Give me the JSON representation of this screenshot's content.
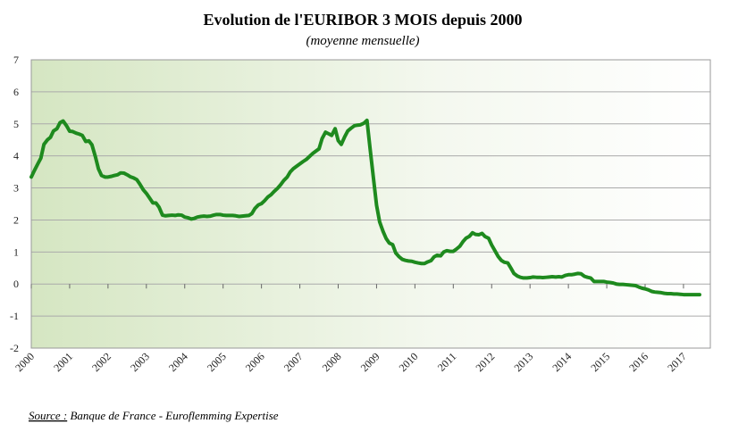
{
  "chart_data": {
    "type": "line",
    "title": "Evolution de l'EURIBOR 3 MOIS depuis 2000",
    "subtitle": "(moyenne mensuelle)",
    "source_label": "Source :",
    "source_text": "Banque de France - Euroflemming Expertise",
    "color": "#1e8a1e",
    "x": [
      2000,
      2000.08,
      2000.17,
      2000.25,
      2000.33,
      2000.42,
      2000.5,
      2000.58,
      2000.67,
      2000.75,
      2000.83,
      2000.92,
      2001,
      2001.08,
      2001.17,
      2001.25,
      2001.33,
      2001.42,
      2001.5,
      2001.58,
      2001.67,
      2001.75,
      2001.83,
      2001.92,
      2002,
      2002.08,
      2002.17,
      2002.25,
      2002.33,
      2002.42,
      2002.5,
      2002.58,
      2002.67,
      2002.75,
      2002.83,
      2002.92,
      2003,
      2003.08,
      2003.17,
      2003.25,
      2003.33,
      2003.42,
      2003.5,
      2003.58,
      2003.67,
      2003.75,
      2003.83,
      2003.92,
      2004,
      2004.08,
      2004.17,
      2004.25,
      2004.33,
      2004.42,
      2004.5,
      2004.58,
      2004.67,
      2004.75,
      2004.83,
      2004.92,
      2005,
      2005.08,
      2005.17,
      2005.25,
      2005.33,
      2005.42,
      2005.5,
      2005.58,
      2005.67,
      2005.75,
      2005.83,
      2005.92,
      2006,
      2006.08,
      2006.17,
      2006.25,
      2006.33,
      2006.42,
      2006.5,
      2006.58,
      2006.67,
      2006.75,
      2006.83,
      2006.92,
      2007,
      2007.08,
      2007.17,
      2007.25,
      2007.33,
      2007.42,
      2007.5,
      2007.58,
      2007.67,
      2007.75,
      2007.83,
      2007.92,
      2008,
      2008.08,
      2008.17,
      2008.25,
      2008.33,
      2008.42,
      2008.5,
      2008.58,
      2008.67,
      2008.75,
      2008.83,
      2008.92,
      2009,
      2009.08,
      2009.17,
      2009.25,
      2009.33,
      2009.42,
      2009.5,
      2009.58,
      2009.67,
      2009.75,
      2009.83,
      2009.92,
      2010,
      2010.08,
      2010.17,
      2010.25,
      2010.33,
      2010.42,
      2010.5,
      2010.58,
      2010.67,
      2010.75,
      2010.83,
      2010.92,
      2011,
      2011.08,
      2011.17,
      2011.25,
      2011.33,
      2011.42,
      2011.5,
      2011.58,
      2011.67,
      2011.75,
      2011.83,
      2011.92,
      2012,
      2012.08,
      2012.17,
      2012.25,
      2012.33,
      2012.42,
      2012.5,
      2012.58,
      2012.67,
      2012.75,
      2012.83,
      2012.92,
      2013,
      2013.08,
      2013.17,
      2013.25,
      2013.33,
      2013.42,
      2013.5,
      2013.58,
      2013.67,
      2013.75,
      2013.83,
      2013.92,
      2014,
      2014.08,
      2014.17,
      2014.25,
      2014.33,
      2014.42,
      2014.5,
      2014.58,
      2014.67,
      2014.75,
      2014.83,
      2014.92,
      2015,
      2015.08,
      2015.17,
      2015.25,
      2015.33,
      2015.42,
      2015.5,
      2015.58,
      2015.67,
      2015.75,
      2015.83,
      2015.92,
      2016,
      2016.08,
      2016.17,
      2016.25,
      2016.33,
      2016.42,
      2016.5,
      2016.58,
      2016.67,
      2016.75,
      2016.83,
      2016.92,
      2017,
      2017.08,
      2017.17,
      2017.25,
      2017.33,
      2017.42
    ],
    "values": [
      3.34,
      3.54,
      3.75,
      3.93,
      4.36,
      4.5,
      4.58,
      4.78,
      4.85,
      5.04,
      5.09,
      4.94,
      4.77,
      4.76,
      4.71,
      4.68,
      4.64,
      4.45,
      4.47,
      4.35,
      3.98,
      3.6,
      3.39,
      3.34,
      3.34,
      3.36,
      3.39,
      3.41,
      3.47,
      3.46,
      3.41,
      3.35,
      3.31,
      3.26,
      3.12,
      2.94,
      2.83,
      2.69,
      2.53,
      2.53,
      2.4,
      2.15,
      2.13,
      2.14,
      2.15,
      2.14,
      2.16,
      2.15,
      2.09,
      2.07,
      2.03,
      2.05,
      2.09,
      2.11,
      2.12,
      2.11,
      2.12,
      2.15,
      2.17,
      2.17,
      2.15,
      2.14,
      2.14,
      2.14,
      2.13,
      2.11,
      2.12,
      2.13,
      2.14,
      2.2,
      2.36,
      2.47,
      2.51,
      2.6,
      2.72,
      2.79,
      2.89,
      2.99,
      3.1,
      3.23,
      3.34,
      3.5,
      3.6,
      3.68,
      3.75,
      3.82,
      3.89,
      3.98,
      4.07,
      4.15,
      4.22,
      4.54,
      4.74,
      4.69,
      4.64,
      4.85,
      4.48,
      4.36,
      4.6,
      4.78,
      4.86,
      4.94,
      4.96,
      4.97,
      5.02,
      5.11,
      4.24,
      3.29,
      2.46,
      1.94,
      1.64,
      1.42,
      1.28,
      1.23,
      0.97,
      0.86,
      0.77,
      0.74,
      0.72,
      0.71,
      0.68,
      0.66,
      0.64,
      0.64,
      0.69,
      0.73,
      0.85,
      0.9,
      0.88,
      1.0,
      1.04,
      1.02,
      1.02,
      1.09,
      1.18,
      1.32,
      1.43,
      1.49,
      1.6,
      1.55,
      1.54,
      1.58,
      1.48,
      1.43,
      1.22,
      1.05,
      0.86,
      0.74,
      0.68,
      0.66,
      0.5,
      0.33,
      0.25,
      0.21,
      0.19,
      0.19,
      0.2,
      0.22,
      0.21,
      0.21,
      0.2,
      0.21,
      0.22,
      0.23,
      0.22,
      0.23,
      0.22,
      0.27,
      0.29,
      0.29,
      0.31,
      0.33,
      0.32,
      0.24,
      0.21,
      0.19,
      0.08,
      0.08,
      0.08,
      0.08,
      0.06,
      0.05,
      0.03,
      0.0,
      -0.01,
      -0.01,
      -0.02,
      -0.03,
      -0.04,
      -0.05,
      -0.09,
      -0.13,
      -0.15,
      -0.18,
      -0.23,
      -0.25,
      -0.26,
      -0.27,
      -0.29,
      -0.3,
      -0.3,
      -0.31,
      -0.31,
      -0.32,
      -0.33,
      -0.33,
      -0.33,
      -0.33,
      -0.33,
      -0.33
    ],
    "xlim": [
      2000,
      2017.7
    ],
    "xticks": [
      2000,
      2001,
      2002,
      2003,
      2004,
      2005,
      2006,
      2007,
      2008,
      2009,
      2010,
      2011,
      2012,
      2013,
      2014,
      2015,
      2016,
      2017
    ],
    "ylim": [
      -2,
      7
    ],
    "yticks": [
      -2,
      -1,
      0,
      1,
      2,
      3,
      4,
      5,
      6,
      7
    ],
    "grid": true
  }
}
